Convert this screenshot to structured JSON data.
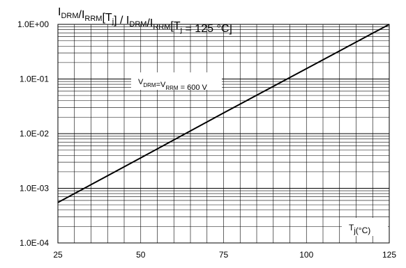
{
  "chart_data": {
    "type": "line",
    "title": {
      "parts": [
        {
          "t": "I",
          "sub": "DRM"
        },
        {
          "t": "/I",
          "sub": "RRM"
        },
        {
          "t": "[T",
          "sub": "j"
        },
        {
          "t": "] / I",
          "sub": "DRM"
        },
        {
          "t": "/I",
          "sub": "RRM"
        },
        {
          "t": "[T",
          "sub": "j"
        },
        {
          "t": " = 125 °C]",
          "sub": ""
        }
      ]
    },
    "xlabel": {
      "t": "T",
      "sub": "j",
      "post": "(°C)"
    },
    "ylabel": "",
    "xlim": [
      25,
      125
    ],
    "ylim": [
      0.0001,
      1
    ],
    "y_scale": "log",
    "x_ticks": [
      "25",
      "50",
      "75",
      "100",
      "125"
    ],
    "y_ticks": [
      "1.0E-04",
      "1.0E-03",
      "1.0E-02",
      "1.0E-01",
      "1.0E+00"
    ],
    "grid": true,
    "annotation": {
      "parts": [
        {
          "t": "V",
          "sub": "DRM"
        },
        {
          "t": "=V",
          "sub": "RRM"
        },
        {
          "t": " = 600 V",
          "sub": ""
        }
      ]
    },
    "series": [
      {
        "x": [
          25,
          50,
          75,
          100,
          125
        ],
        "y": [
          0.00055,
          0.0036,
          0.024,
          0.155,
          1.0
        ]
      }
    ]
  }
}
